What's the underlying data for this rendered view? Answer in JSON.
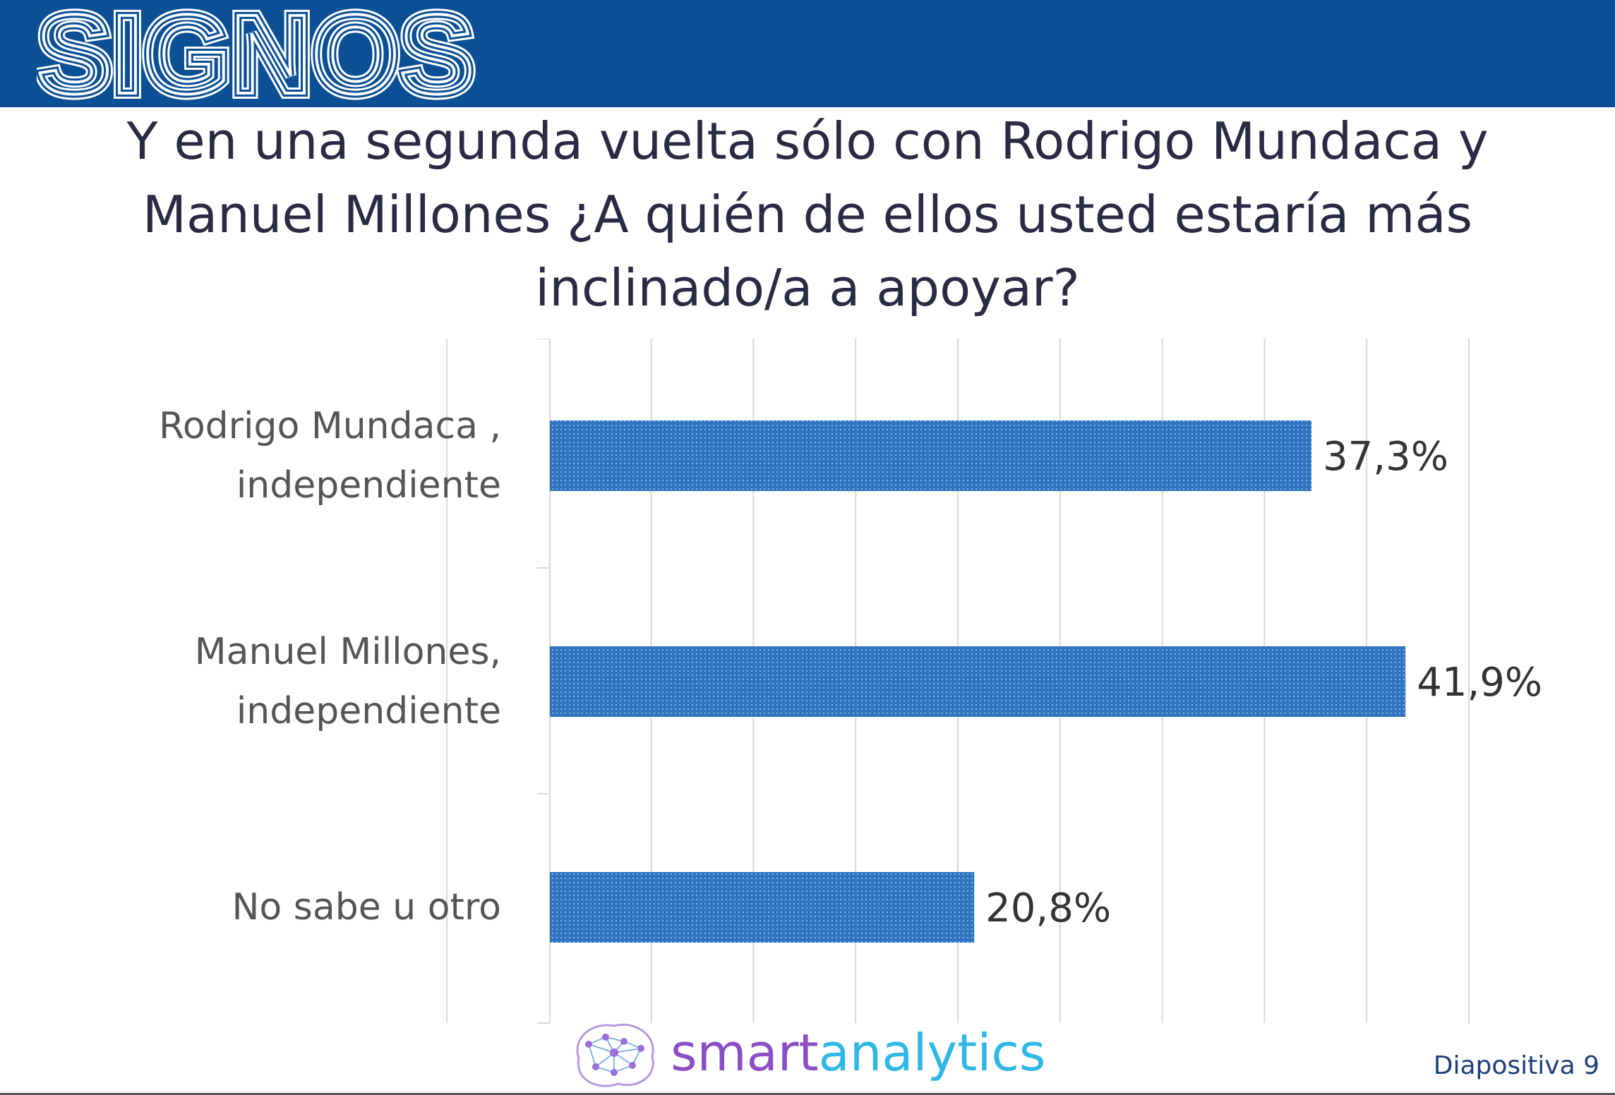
{
  "header": {
    "brand": "SIGNOS",
    "background_color": "#0b4f95"
  },
  "question": {
    "line1": "Y en una segunda vuelta sólo con Rodrigo Mundaca y",
    "line2": "Manuel Millones ¿A quién de ellos usted estaría más",
    "line3": "inclinado/a a apoyar?"
  },
  "chart_data": {
    "type": "bar",
    "orientation": "horizontal",
    "categories": [
      [
        "Rodrigo Mundaca ,",
        "independiente"
      ],
      [
        "Manuel Millones,",
        "independiente"
      ],
      [
        "No sabe u otro"
      ]
    ],
    "values": [
      37.3,
      41.9,
      20.8
    ],
    "data_labels": [
      "37,3%",
      "41,9%",
      "20,8%"
    ],
    "xlim": [
      -5,
      45
    ],
    "gridlines": [
      -5,
      0,
      5,
      10,
      15,
      20,
      25,
      30,
      35,
      40,
      45
    ],
    "grid": true,
    "bar_color": "#2e74c0",
    "bar_pattern": "dotted"
  },
  "footer": {
    "logo_smart": "smart",
    "logo_analytics": "analytics",
    "logo_icon": "brain-network-icon",
    "slide_number": "Diapositiva 9"
  }
}
